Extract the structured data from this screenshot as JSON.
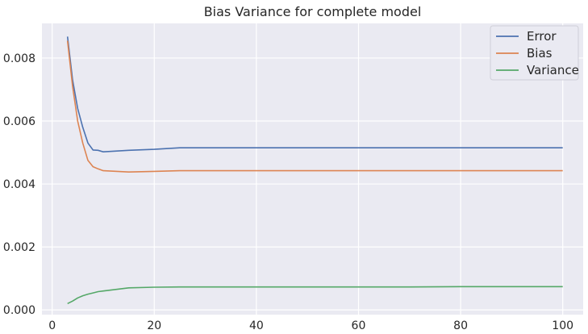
{
  "chart_data": {
    "type": "line",
    "title": "Bias Variance for complete model",
    "xlabel": "",
    "ylabel": "",
    "xlim": [
      -2,
      104
    ],
    "ylim": [
      -0.00015,
      0.0091
    ],
    "xticks": [
      0,
      20,
      40,
      60,
      80,
      100
    ],
    "xtick_labels": [
      "0",
      "20",
      "40",
      "60",
      "80",
      "100"
    ],
    "yticks": [
      0.0,
      0.002,
      0.004,
      0.006,
      0.008
    ],
    "ytick_labels": [
      "0.000",
      "0.002",
      "0.004",
      "0.006",
      "0.008"
    ],
    "grid": true,
    "background": "#EAEAF2",
    "legend_position": "top-right",
    "series": [
      {
        "name": "Error",
        "color": "#4C72B0",
        "x": [
          3,
          4,
          5,
          6,
          7,
          8,
          9,
          10,
          15,
          20,
          25,
          30,
          40,
          50,
          60,
          70,
          80,
          90,
          100
        ],
        "values": [
          0.00868,
          0.0073,
          0.0064,
          0.0058,
          0.0053,
          0.00508,
          0.00507,
          0.00502,
          0.00507,
          0.0051,
          0.00515,
          0.00515,
          0.00515,
          0.00515,
          0.00515,
          0.00515,
          0.00515,
          0.00515,
          0.00515
        ]
      },
      {
        "name": "Bias",
        "color": "#DD8452",
        "x": [
          3,
          4,
          5,
          6,
          7,
          8,
          9,
          10,
          15,
          20,
          25,
          30,
          40,
          50,
          60,
          70,
          80,
          90,
          100
        ],
        "values": [
          0.00855,
          0.0071,
          0.006,
          0.0053,
          0.00475,
          0.00455,
          0.00448,
          0.00442,
          0.00438,
          0.0044,
          0.00442,
          0.00442,
          0.00442,
          0.00442,
          0.00442,
          0.00442,
          0.00442,
          0.00442,
          0.00442
        ]
      },
      {
        "name": "Variance",
        "color": "#55A868",
        "x": [
          3,
          4,
          5,
          6,
          7,
          8,
          9,
          10,
          15,
          20,
          25,
          30,
          40,
          50,
          60,
          70,
          80,
          90,
          100
        ],
        "values": [
          0.0002,
          0.00028,
          0.00038,
          0.00045,
          0.0005,
          0.00054,
          0.00058,
          0.0006,
          0.0007,
          0.00072,
          0.00073,
          0.00073,
          0.00073,
          0.00073,
          0.00073,
          0.00073,
          0.00074,
          0.00074,
          0.00074
        ]
      }
    ]
  }
}
